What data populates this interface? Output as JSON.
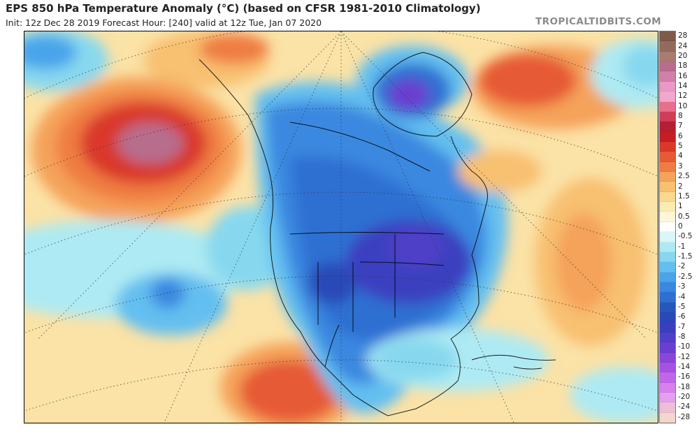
{
  "header": {
    "title": "EPS 850 hPa Temperature Anomaly (°C) (based on CFSR 1981-2010 Climatology)",
    "subtitle": "Init: 12z Dec 28 2019   Forecast Hour: [240]   valid at 12z Tue, Jan 07 2020",
    "site": "TROPICALTIDBITS.COM"
  },
  "legend": {
    "levels": [
      {
        "label": "28",
        "color": "#7d5a4a"
      },
      {
        "label": "24",
        "color": "#946a5c"
      },
      {
        "label": "20",
        "color": "#a77d70"
      },
      {
        "label": "18",
        "color": "#b76d8c"
      },
      {
        "label": "16",
        "color": "#d27faa"
      },
      {
        "label": "14",
        "color": "#ea98c6"
      },
      {
        "label": "12",
        "color": "#f1a8cc"
      },
      {
        "label": "10",
        "color": "#e7708c"
      },
      {
        "label": "8",
        "color": "#cf3d58"
      },
      {
        "label": "7",
        "color": "#b41f33"
      },
      {
        "label": "6",
        "color": "#c41e24"
      },
      {
        "label": "5",
        "color": "#d9382a"
      },
      {
        "label": "4",
        "color": "#e65a35"
      },
      {
        "label": "3",
        "color": "#ef7d43"
      },
      {
        "label": "2.5",
        "color": "#f5a25a"
      },
      {
        "label": "2",
        "color": "#f8c071"
      },
      {
        "label": "1.5",
        "color": "#fad98e"
      },
      {
        "label": "1",
        "color": "#fcebb3"
      },
      {
        "label": "0.5",
        "color": "#fdf6d8"
      },
      {
        "label": "0",
        "color": "#ffffff"
      },
      {
        "label": "-0.5",
        "color": "#daf6f8"
      },
      {
        "label": "-1",
        "color": "#aeeaf3"
      },
      {
        "label": "-1.5",
        "color": "#87d8ef"
      },
      {
        "label": "-2",
        "color": "#63bff0"
      },
      {
        "label": "-2.5",
        "color": "#4aa4ea"
      },
      {
        "label": "-3",
        "color": "#3b88e0"
      },
      {
        "label": "-4",
        "color": "#2f6fd2"
      },
      {
        "label": "-5",
        "color": "#2658bb"
      },
      {
        "label": "-6",
        "color": "#2a49b8"
      },
      {
        "label": "-7",
        "color": "#3a3fc0"
      },
      {
        "label": "-8",
        "color": "#5040c8"
      },
      {
        "label": "-10",
        "color": "#6a3ed0"
      },
      {
        "label": "-12",
        "color": "#8a45da"
      },
      {
        "label": "-14",
        "color": "#a552e3"
      },
      {
        "label": "-16",
        "color": "#c165e9"
      },
      {
        "label": "-18",
        "color": "#d781ee"
      },
      {
        "label": "-20",
        "color": "#e4a0ef"
      },
      {
        "label": "-24",
        "color": "#edbfd5"
      },
      {
        "label": "-28",
        "color": "#f5d6cc"
      }
    ]
  }
}
